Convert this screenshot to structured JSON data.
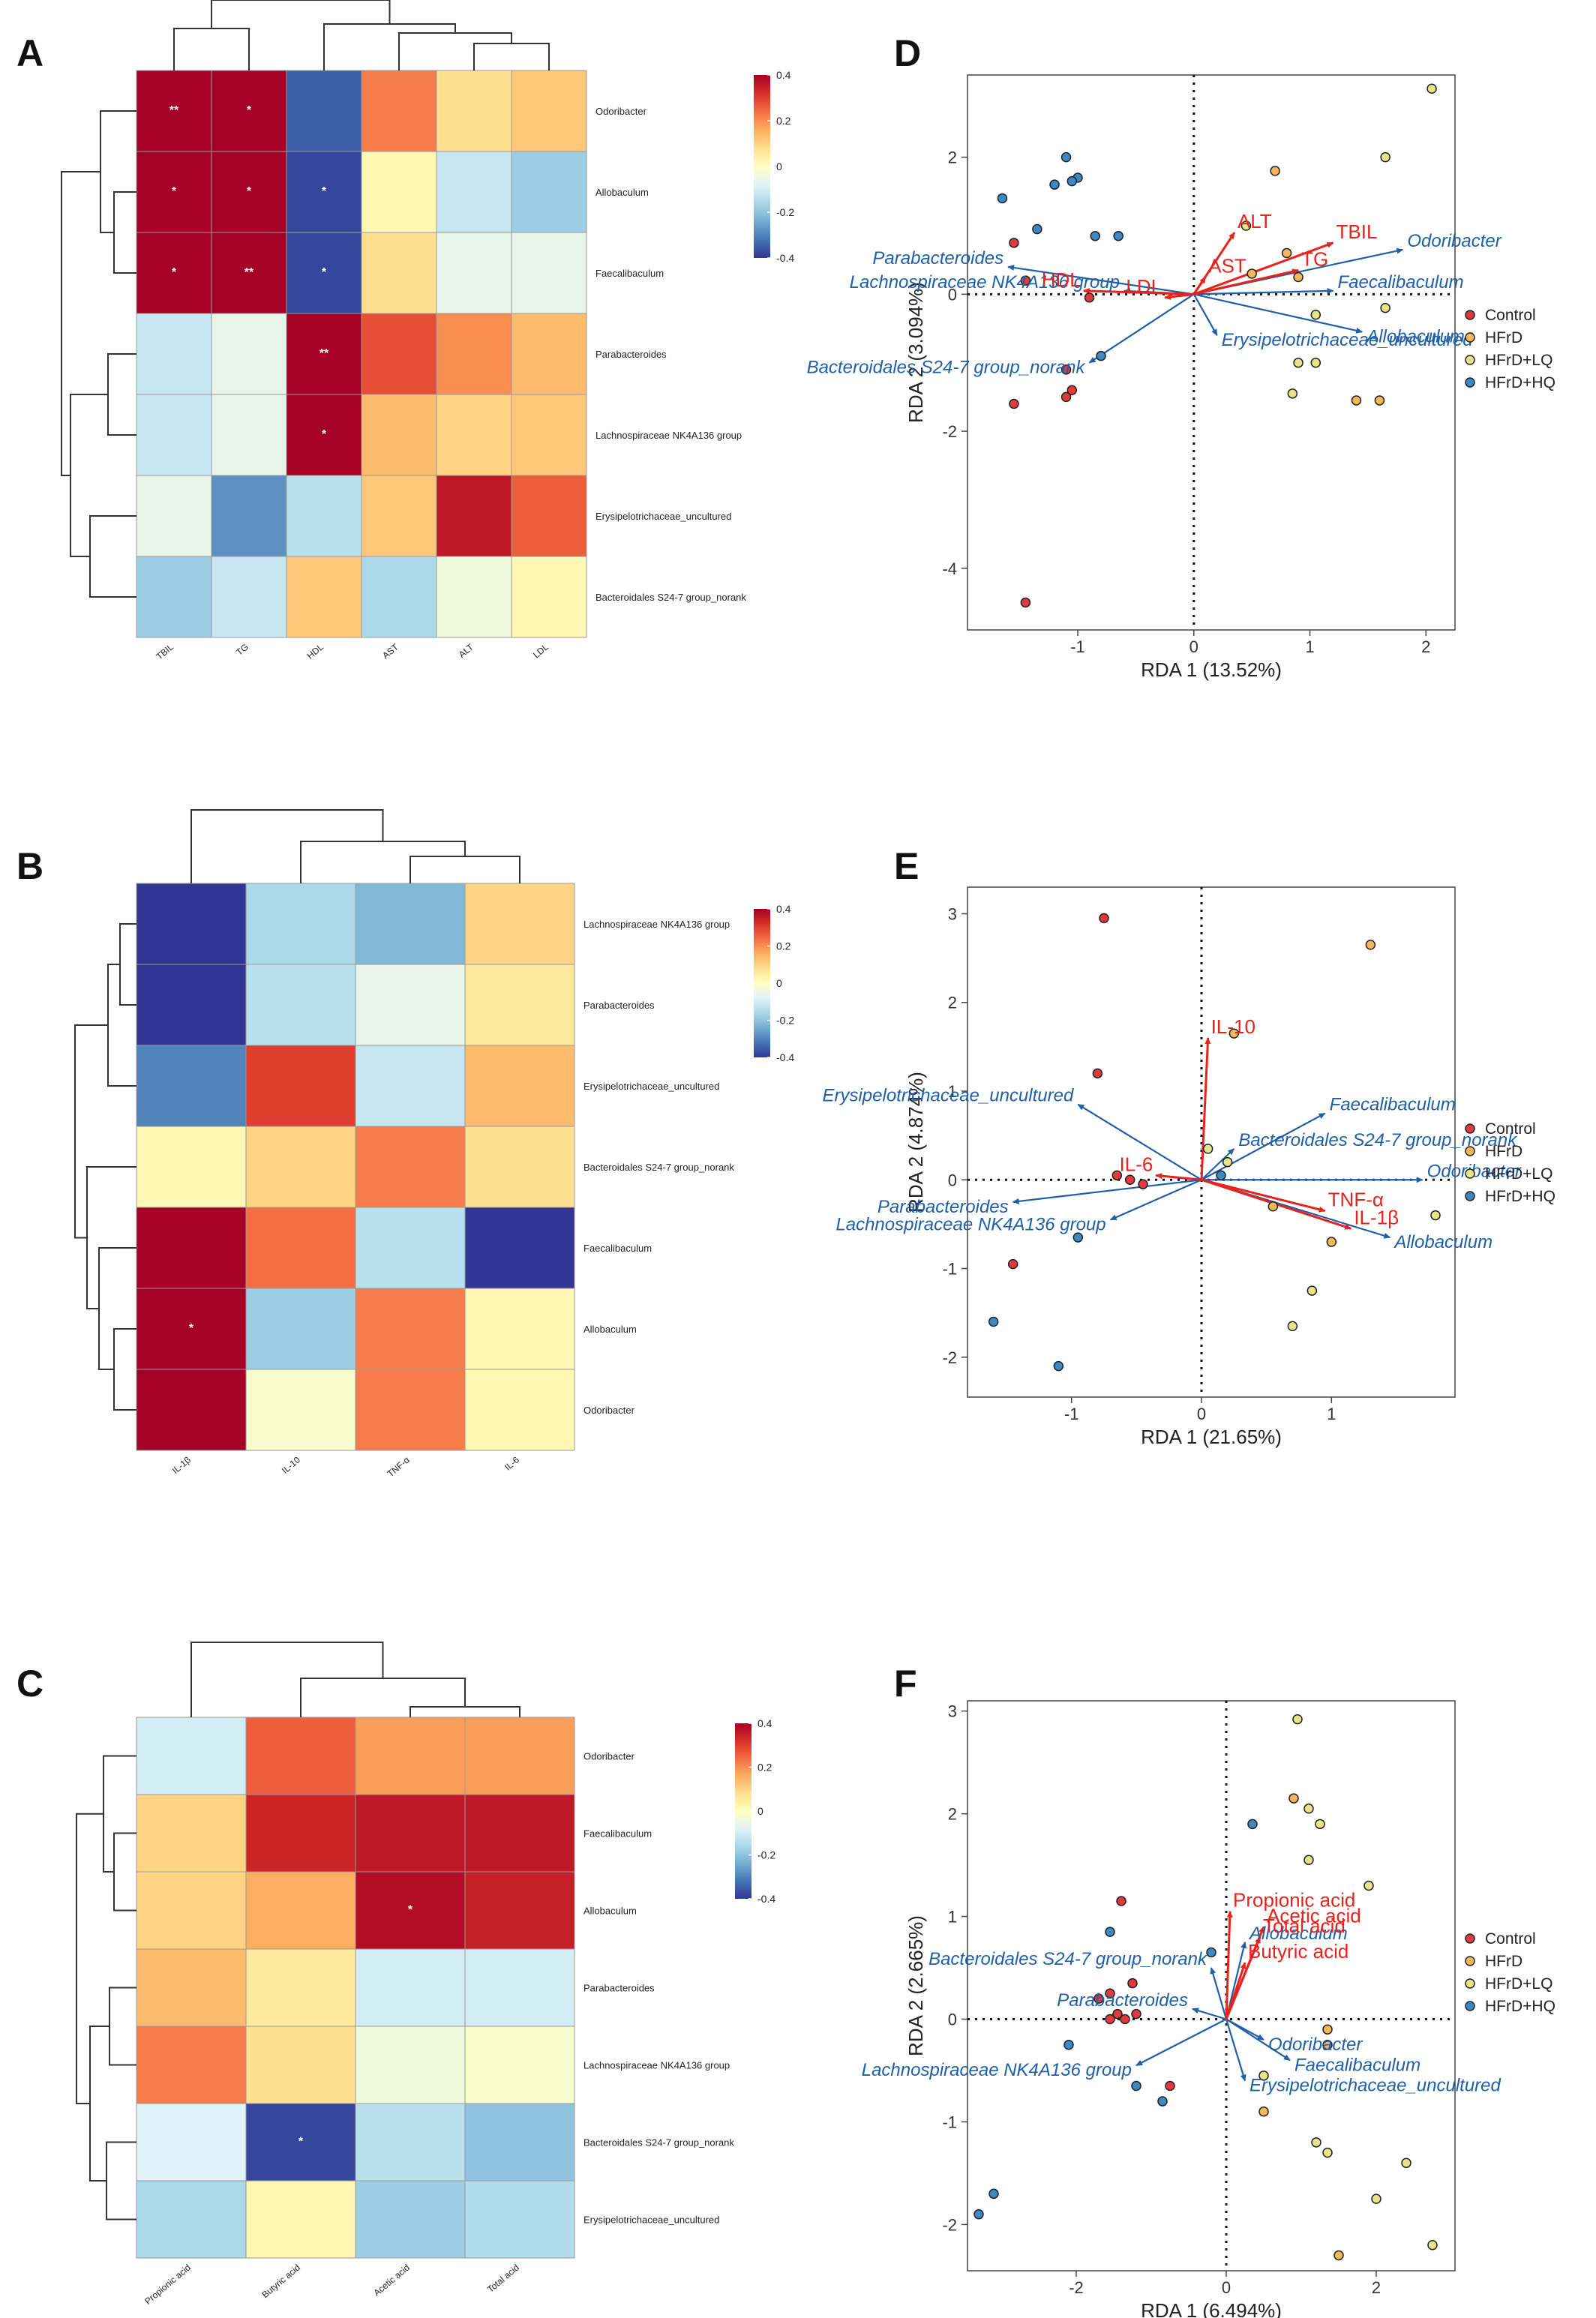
{
  "panel_letters": [
    "A",
    "B",
    "C",
    "D",
    "E",
    "F"
  ],
  "colorbar_ticks": {
    "a": [
      "0.4",
      "0.2",
      "0",
      "-0.2",
      "-0.4"
    ],
    "b": [
      "0.4",
      "0.2",
      "0",
      "-0.2",
      "-0.4"
    ],
    "c": [
      "0.4",
      "0.2",
      "0",
      "-0.2",
      "-0.4"
    ]
  },
  "legend": {
    "items": [
      "Control",
      "HFrD",
      "HFrD+LQ",
      "HFrD+HQ"
    ],
    "colors": [
      "#e03a3e",
      "#f6b65a",
      "#e6e58a",
      "#3b8ac6"
    ]
  },
  "colors": {
    "heat_scale": [
      "#313695",
      "#4575b4",
      "#74add1",
      "#abd9e9",
      "#e0f3f8",
      "#ffffbf",
      "#fee090",
      "#fdae61",
      "#f46d43",
      "#d73027",
      "#a50026"
    ],
    "env_arrow": "#e8221c",
    "species_arrow": "#1f5fa8"
  },
  "chart_data": [
    {
      "id": "A",
      "type": "heatmap",
      "columns": [
        "TBIL",
        "TG",
        "HDL",
        "AST",
        "ALT",
        "LDL"
      ],
      "rows": [
        "Odoribacter",
        "Allobaculum",
        "Faecalibaculum",
        "Parabacteroides",
        "Lachnospiraceae NK4A136 group",
        "Erysipelotrichaceae_uncultured",
        "Bacteroidales S24-7 group_norank"
      ],
      "values": [
        [
          0.42,
          0.42,
          -0.35,
          0.22,
          0.08,
          0.12
        ],
        [
          0.42,
          0.42,
          -0.38,
          0.02,
          -0.12,
          -0.18
        ],
        [
          0.42,
          0.42,
          -0.38,
          0.08,
          -0.06,
          -0.06
        ],
        [
          -0.12,
          -0.06,
          0.42,
          0.28,
          0.2,
          0.14
        ],
        [
          -0.12,
          -0.06,
          0.42,
          0.14,
          0.1,
          0.12
        ],
        [
          -0.06,
          -0.28,
          -0.14,
          0.12,
          0.36,
          0.26
        ],
        [
          -0.18,
          -0.12,
          0.12,
          -0.16,
          -0.04,
          0.02
        ]
      ],
      "stars": [
        [
          "**",
          "*",
          "",
          "",
          "",
          ""
        ],
        [
          "*",
          "*",
          "*",
          "",
          "",
          ""
        ],
        [
          "*",
          "**",
          "*",
          "",
          "",
          ""
        ],
        [
          "",
          "",
          "**",
          "",
          "",
          ""
        ],
        [
          "",
          "",
          "*",
          "",
          "",
          ""
        ],
        [
          "",
          "",
          "",
          "",
          "",
          ""
        ],
        [
          "",
          "",
          "",
          "",
          "",
          ""
        ]
      ],
      "range": [
        -0.4,
        0.4
      ]
    },
    {
      "id": "B",
      "type": "heatmap",
      "columns": [
        "IL-1β",
        "IL-10",
        "TNF-α",
        "IL-6"
      ],
      "rows": [
        "Lachnospiraceae NK4A136 group",
        "Parabacteroides",
        "Erysipelotrichaceae_uncultured",
        "Bacteroidales S24-7 group_norank",
        "Faecalibaculum",
        "Allobaculum",
        "Odoribacter"
      ],
      "values": [
        [
          -0.42,
          -0.16,
          -0.22,
          0.1
        ],
        [
          -0.42,
          -0.14,
          -0.06,
          0.06
        ],
        [
          -0.3,
          0.3,
          -0.12,
          0.14
        ],
        [
          0.02,
          0.1,
          0.22,
          0.08
        ],
        [
          0.44,
          0.24,
          -0.14,
          -0.42
        ],
        [
          0.46,
          -0.18,
          0.22,
          0.02
        ],
        [
          0.4,
          -0.02,
          0.22,
          0.02
        ]
      ],
      "stars": [
        [
          "",
          "",
          "",
          ""
        ],
        [
          "",
          "",
          "",
          ""
        ],
        [
          "",
          "",
          "",
          ""
        ],
        [
          "",
          "",
          "",
          ""
        ],
        [
          "",
          "",
          "",
          ""
        ],
        [
          "*",
          "",
          "",
          ""
        ],
        [
          "",
          "",
          "",
          ""
        ]
      ],
      "range": [
        -0.4,
        0.4
      ]
    },
    {
      "id": "C",
      "type": "heatmap",
      "columns": [
        "Propionic acid",
        "Butyric acid",
        "Acetic acid",
        "Total acid"
      ],
      "rows": [
        "Odoribacter",
        "Faecalibaculum",
        "Allobaculum",
        "Parabacteroides",
        "Lachnospiraceae NK4A136 group",
        "Bacteroidales S24-7 group_norank",
        "Erysipelotrichaceae_uncultured"
      ],
      "values": [
        [
          -0.1,
          0.26,
          0.18,
          0.18
        ],
        [
          0.1,
          0.34,
          0.36,
          0.36
        ],
        [
          0.1,
          0.16,
          0.38,
          0.35
        ],
        [
          0.14,
          0.06,
          -0.1,
          -0.1
        ],
        [
          0.22,
          0.08,
          -0.04,
          -0.02
        ],
        [
          -0.08,
          -0.38,
          -0.14,
          -0.2
        ],
        [
          -0.16,
          0.02,
          -0.18,
          -0.15
        ]
      ],
      "stars": [
        [
          "",
          "",
          "",
          ""
        ],
        [
          "",
          "",
          "",
          ""
        ],
        [
          "",
          "",
          "*",
          ""
        ],
        [
          "",
          "",
          "",
          ""
        ],
        [
          "",
          "",
          "",
          ""
        ],
        [
          "",
          "*",
          "",
          ""
        ],
        [
          "",
          "",
          "",
          ""
        ]
      ],
      "range": [
        -0.4,
        0.4
      ]
    },
    {
      "id": "D",
      "type": "scatter",
      "xlabel": "RDA 1 (13.52%)",
      "ylabel": "RDA 2 (3.094%)",
      "xlim": [
        -1.95,
        2.25
      ],
      "ylim": [
        -4.9,
        3.2
      ],
      "xticks": [
        -1,
        0,
        1,
        2
      ],
      "yticks": [
        -4,
        -2,
        0,
        2
      ],
      "points": [
        {
          "g": 0,
          "x": -1.55,
          "y": 0.75
        },
        {
          "g": 0,
          "x": -1.45,
          "y": 0.2
        },
        {
          "g": 0,
          "x": -1.55,
          "y": -1.6
        },
        {
          "g": 0,
          "x": -1.1,
          "y": -1.5
        },
        {
          "g": 0,
          "x": -1.05,
          "y": -1.4
        },
        {
          "g": 0,
          "x": -1.1,
          "y": -1.1
        },
        {
          "g": 0,
          "x": -1.45,
          "y": -4.5
        },
        {
          "g": 0,
          "x": -0.9,
          "y": -0.05
        },
        {
          "g": 1,
          "x": 0.7,
          "y": 1.8
        },
        {
          "g": 1,
          "x": 0.8,
          "y": 0.6
        },
        {
          "g": 1,
          "x": 1.4,
          "y": -1.55
        },
        {
          "g": 1,
          "x": 1.6,
          "y": -1.55
        },
        {
          "g": 1,
          "x": 0.9,
          "y": 0.25
        },
        {
          "g": 1,
          "x": 0.5,
          "y": 0.3
        },
        {
          "g": 2,
          "x": 2.05,
          "y": 3.0
        },
        {
          "g": 2,
          "x": 1.65,
          "y": 2.0
        },
        {
          "g": 2,
          "x": 0.45,
          "y": 1.0
        },
        {
          "g": 2,
          "x": 0.9,
          "y": -1.0
        },
        {
          "g": 2,
          "x": 1.05,
          "y": -1.0
        },
        {
          "g": 2,
          "x": 0.85,
          "y": -1.45
        },
        {
          "g": 2,
          "x": 1.65,
          "y": -0.2
        },
        {
          "g": 2,
          "x": 1.05,
          "y": -0.3
        },
        {
          "g": 3,
          "x": -1.1,
          "y": 2.0
        },
        {
          "g": 3,
          "x": -1.0,
          "y": 1.7
        },
        {
          "g": 3,
          "x": -1.2,
          "y": 1.6
        },
        {
          "g": 3,
          "x": -1.05,
          "y": 1.65
        },
        {
          "g": 3,
          "x": -1.65,
          "y": 1.4
        },
        {
          "g": 3,
          "x": -1.35,
          "y": 0.95
        },
        {
          "g": 3,
          "x": -0.65,
          "y": 0.85
        },
        {
          "g": 3,
          "x": -0.85,
          "y": 0.85
        },
        {
          "g": 3,
          "x": -0.8,
          "y": -0.9
        }
      ],
      "env_vectors": [
        {
          "label": "TBIL",
          "x": 1.2,
          "y": 0.75
        },
        {
          "label": "TG",
          "x": 0.9,
          "y": 0.35
        },
        {
          "label": "ALT",
          "x": 0.35,
          "y": 0.9
        },
        {
          "label": "AST",
          "x": 0.1,
          "y": 0.25
        },
        {
          "label": "HDL",
          "x": -0.95,
          "y": 0.05
        },
        {
          "label": "LDL",
          "x": -0.25,
          "y": -0.05
        }
      ],
      "species_vectors": [
        {
          "label": "Odoribacter",
          "x": 1.8,
          "y": 0.65
        },
        {
          "label": "Faecalibaculum",
          "x": 1.2,
          "y": 0.05
        },
        {
          "label": "Allobaculum",
          "x": 1.45,
          "y": -0.55
        },
        {
          "label": "Parabacteroides",
          "x": -1.6,
          "y": 0.4
        },
        {
          "label": "Lachnospiraceae NK4A136 group",
          "x": -0.6,
          "y": 0.05
        },
        {
          "label": "Erysipelotrichaceae_uncultured",
          "x": 0.2,
          "y": -0.6
        },
        {
          "label": "Bacteroidales S24-7 group_norank",
          "x": -0.9,
          "y": -1.0
        }
      ]
    },
    {
      "id": "E",
      "type": "scatter",
      "xlabel": "RDA 1 (21.65%)",
      "ylabel": "RDA 2 (4.874%)",
      "xlim": [
        -1.8,
        1.95
      ],
      "ylim": [
        -2.45,
        3.3
      ],
      "xticks": [
        -1,
        0,
        1
      ],
      "yticks": [
        -2,
        -1,
        0,
        1,
        2,
        3
      ],
      "points": [
        {
          "g": 0,
          "x": -0.75,
          "y": 2.95
        },
        {
          "g": 0,
          "x": -0.8,
          "y": 1.2
        },
        {
          "g": 0,
          "x": -0.65,
          "y": 0.05
        },
        {
          "g": 0,
          "x": -0.45,
          "y": -0.05
        },
        {
          "g": 0,
          "x": -1.45,
          "y": -0.95
        },
        {
          "g": 0,
          "x": -0.55,
          "y": 0.0
        },
        {
          "g": 1,
          "x": 1.3,
          "y": 2.65
        },
        {
          "g": 1,
          "x": 0.25,
          "y": 1.65
        },
        {
          "g": 1,
          "x": 0.55,
          "y": -0.3
        },
        {
          "g": 1,
          "x": 1.0,
          "y": -0.7
        },
        {
          "g": 2,
          "x": 1.8,
          "y": -0.4
        },
        {
          "g": 2,
          "x": 0.85,
          "y": -1.25
        },
        {
          "g": 2,
          "x": 0.7,
          "y": -1.65
        },
        {
          "g": 2,
          "x": 0.05,
          "y": 0.35
        },
        {
          "g": 2,
          "x": 0.2,
          "y": 0.2
        },
        {
          "g": 3,
          "x": -1.6,
          "y": -1.6
        },
        {
          "g": 3,
          "x": -1.1,
          "y": -2.1
        },
        {
          "g": 3,
          "x": -0.95,
          "y": -0.65
        },
        {
          "g": 3,
          "x": 0.15,
          "y": 0.05
        }
      ],
      "env_vectors": [
        {
          "label": "IL-10",
          "x": 0.05,
          "y": 1.6
        },
        {
          "label": "IL-6",
          "x": -0.35,
          "y": 0.05
        },
        {
          "label": "TNF-α",
          "x": 0.95,
          "y": -0.35
        },
        {
          "label": "IL-1β",
          "x": 1.15,
          "y": -0.55
        }
      ],
      "species_vectors": [
        {
          "label": "Erysipelotrichaceae_uncultured",
          "x": -0.95,
          "y": 0.85
        },
        {
          "label": "Faecalibaculum",
          "x": 0.95,
          "y": 0.75
        },
        {
          "label": "Bacteroidales S24-7 group_norank",
          "x": 0.25,
          "y": 0.35
        },
        {
          "label": "Odoribacter",
          "x": 1.7,
          "y": 0.0
        },
        {
          "label": "Parabacteroides",
          "x": -1.45,
          "y": -0.25
        },
        {
          "label": "Lachnospiraceae NK4A136 group",
          "x": -0.7,
          "y": -0.45
        },
        {
          "label": "Allobaculum",
          "x": 1.45,
          "y": -0.65
        }
      ]
    },
    {
      "id": "F",
      "type": "scatter",
      "xlabel": "RDA 1 (6.494%)",
      "ylabel": "RDA 2 (2.665%)",
      "xlim": [
        -3.45,
        3.05
      ],
      "ylim": [
        -2.45,
        3.1
      ],
      "xticks": [
        -2,
        0,
        2
      ],
      "yticks": [
        -2,
        -1,
        0,
        1,
        2,
        3
      ],
      "points": [
        {
          "g": 0,
          "x": -1.4,
          "y": 1.15
        },
        {
          "g": 0,
          "x": -1.25,
          "y": 0.35
        },
        {
          "g": 0,
          "x": -1.55,
          "y": 0.25
        },
        {
          "g": 0,
          "x": -1.7,
          "y": 0.2
        },
        {
          "g": 0,
          "x": -1.45,
          "y": 0.05
        },
        {
          "g": 0,
          "x": -1.2,
          "y": 0.05
        },
        {
          "g": 0,
          "x": -1.35,
          "y": 0.0
        },
        {
          "g": 0,
          "x": -1.55,
          "y": 0.0
        },
        {
          "g": 0,
          "x": -0.75,
          "y": -0.65
        },
        {
          "g": 1,
          "x": 0.9,
          "y": 2.15
        },
        {
          "g": 1,
          "x": 1.35,
          "y": -0.1
        },
        {
          "g": 1,
          "x": 1.5,
          "y": -2.3
        },
        {
          "g": 1,
          "x": 1.35,
          "y": -0.25
        },
        {
          "g": 1,
          "x": 0.5,
          "y": -0.9
        },
        {
          "g": 2,
          "x": 0.95,
          "y": 2.92
        },
        {
          "g": 2,
          "x": 1.1,
          "y": 2.05
        },
        {
          "g": 2,
          "x": 1.25,
          "y": 1.9
        },
        {
          "g": 2,
          "x": 1.1,
          "y": 1.55
        },
        {
          "g": 2,
          "x": 1.9,
          "y": 1.3
        },
        {
          "g": 2,
          "x": 1.2,
          "y": -1.2
        },
        {
          "g": 2,
          "x": 1.35,
          "y": -1.3
        },
        {
          "g": 2,
          "x": 2.4,
          "y": -1.4
        },
        {
          "g": 2,
          "x": 2.0,
          "y": -1.75
        },
        {
          "g": 2,
          "x": 2.75,
          "y": -2.2
        },
        {
          "g": 2,
          "x": 0.5,
          "y": -0.55
        },
        {
          "g": 3,
          "x": 0.35,
          "y": 1.9
        },
        {
          "g": 3,
          "x": -0.2,
          "y": 0.65
        },
        {
          "g": 3,
          "x": -1.55,
          "y": 0.85
        },
        {
          "g": 3,
          "x": -3.1,
          "y": -1.7
        },
        {
          "g": 3,
          "x": -3.3,
          "y": -1.9
        },
        {
          "g": 3,
          "x": -2.1,
          "y": -0.25
        },
        {
          "g": 3,
          "x": -1.2,
          "y": -0.65
        },
        {
          "g": 3,
          "x": -0.85,
          "y": -0.8
        }
      ],
      "env_vectors": [
        {
          "label": "Propionic acid",
          "x": 0.05,
          "y": 1.05
        },
        {
          "label": "Acetic acid",
          "x": 0.5,
          "y": 0.9
        },
        {
          "label": "Total acid",
          "x": 0.45,
          "y": 0.8
        },
        {
          "label": "Butyric acid",
          "x": 0.25,
          "y": 0.55
        }
      ],
      "species_vectors": [
        {
          "label": "Allobaculum",
          "x": 0.25,
          "y": 0.75
        },
        {
          "label": "Bacteroidales S24-7 group_norank",
          "x": -0.2,
          "y": 0.5
        },
        {
          "label": "Parabacteroides",
          "x": -0.45,
          "y": 0.1
        },
        {
          "label": "Lachnospiraceae NK4A136 group",
          "x": -1.2,
          "y": -0.45
        },
        {
          "label": "Odoribacter",
          "x": 0.5,
          "y": -0.2
        },
        {
          "label": "Faecalibaculum",
          "x": 0.85,
          "y": -0.4
        },
        {
          "label": "Erysipelotrichaceae_uncultured",
          "x": 0.25,
          "y": -0.6
        }
      ]
    }
  ]
}
